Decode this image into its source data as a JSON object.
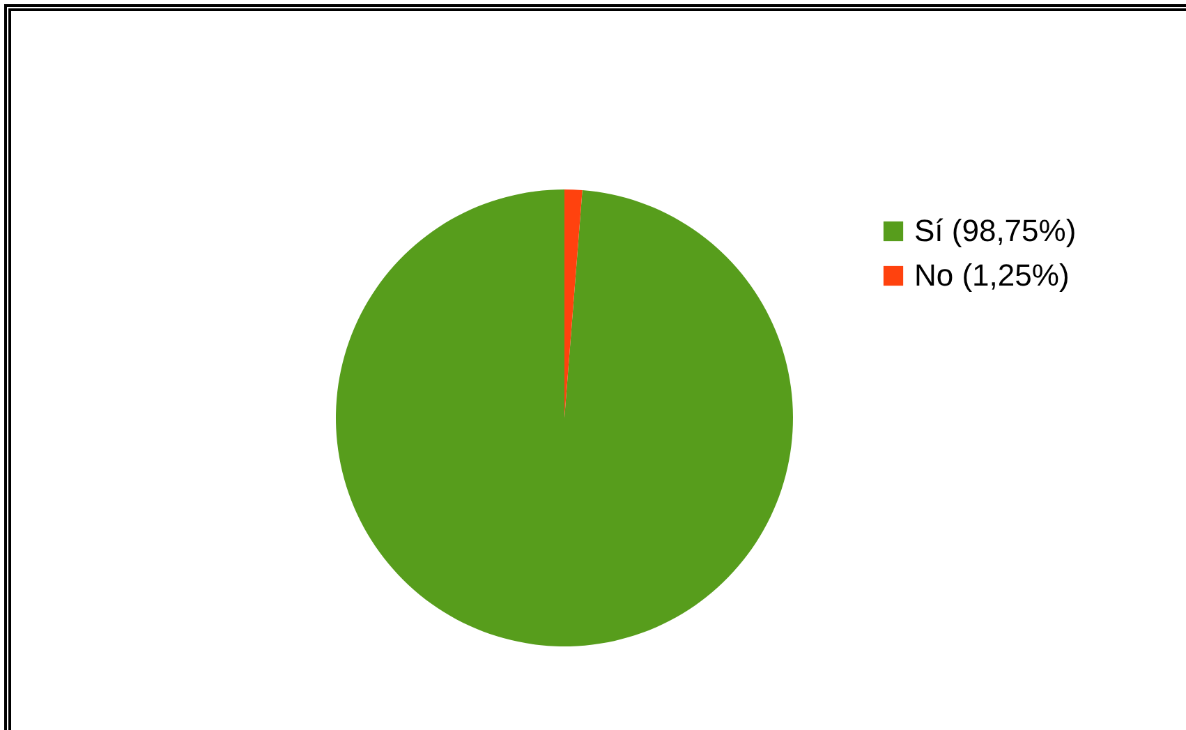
{
  "chart_data": {
    "type": "pie",
    "categories": [
      "Sí (98,75%)",
      "No (1,25%)"
    ],
    "values": [
      98.75,
      1.25
    ],
    "colors": [
      "#579d1c",
      "#ff420e"
    ],
    "legend": "right"
  }
}
